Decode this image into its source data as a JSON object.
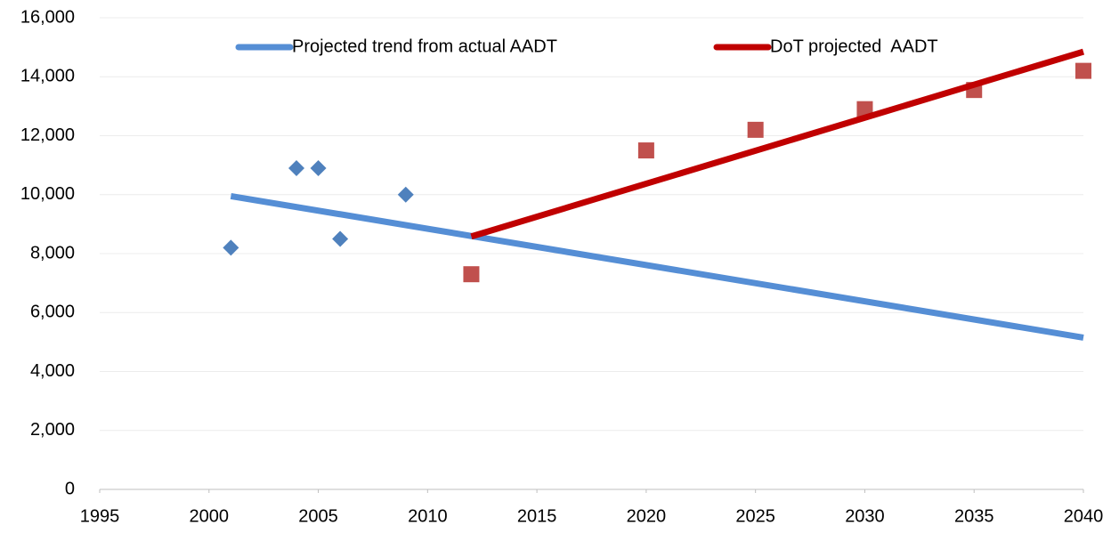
{
  "chart_data": {
    "type": "scatter",
    "xlim": [
      1995,
      2040
    ],
    "xticks": [
      1995,
      2000,
      2005,
      2010,
      2015,
      2020,
      2025,
      2030,
      2035,
      2040
    ],
    "ylim": [
      0,
      16000
    ],
    "yticks": [
      0,
      {
        "value": 2000,
        "label": "2,000"
      },
      {
        "value": 4000,
        "label": "4,000"
      },
      {
        "value": 6000,
        "label": "6,000"
      },
      {
        "value": 8000,
        "label": "8,000"
      },
      {
        "value": 10000,
        "label": "10,000"
      },
      {
        "value": 12000,
        "label": "12,000"
      },
      {
        "value": 14000,
        "label": "14,000"
      },
      {
        "value": 16000,
        "label": "16,000"
      }
    ],
    "grid": true,
    "legend": "top",
    "series": [
      {
        "marker": "diamond",
        "color": "#4f81bd",
        "x": [
          2001,
          2004,
          2005,
          2006,
          2009
        ],
        "values": [
          8200,
          10900,
          10900,
          8500,
          10000
        ]
      },
      {
        "marker": "square",
        "color": "#c0504d",
        "x": [
          2012,
          2020,
          2025,
          2030,
          2035,
          2040
        ],
        "values": [
          7300,
          11500,
          12200,
          12900,
          13550,
          14200
        ]
      },
      {
        "name": "Projected trend from actual AADT",
        "marker": "line",
        "color": "#558ed5",
        "x": [
          2001,
          2040
        ],
        "values": [
          9950,
          5150
        ]
      },
      {
        "name": "DoT projected  AADT",
        "marker": "line",
        "color": "#c00000",
        "x": [
          2012,
          2040
        ],
        "values": [
          8580,
          14850
        ]
      }
    ]
  }
}
